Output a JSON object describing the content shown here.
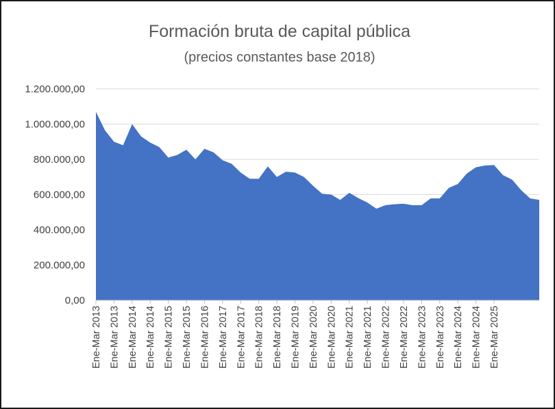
{
  "chart_data": {
    "type": "area",
    "title": "Formación bruta de capital pública",
    "subtitle": "(precios constantes base 2018)",
    "xlabel": "",
    "ylabel": "",
    "ylim": [
      0,
      1200000
    ],
    "grid": true,
    "yticks": [
      {
        "value": 0,
        "label": "0,00"
      },
      {
        "value": 200000,
        "label": "200.000,00"
      },
      {
        "value": 400000,
        "label": "400.000,00"
      },
      {
        "value": 600000,
        "label": "600.000,00"
      },
      {
        "value": 800000,
        "label": "800.000,00"
      },
      {
        "value": 1000000,
        "label": "1.000.000,00"
      },
      {
        "value": 1200000,
        "label": "1.200.000,00"
      }
    ],
    "xticks": [
      {
        "index": 0,
        "label": "Ene-Mar 2013"
      },
      {
        "index": 2,
        "label": "Ene-Mar 2013"
      },
      {
        "index": 4,
        "label": "Ene-Mar 2014"
      },
      {
        "index": 6,
        "label": "Ene-Mar 2014"
      },
      {
        "index": 8,
        "label": "Ene-Mar 2015"
      },
      {
        "index": 10,
        "label": "Ene-Mar 2015"
      },
      {
        "index": 12,
        "label": "Ene-Mar 2016"
      },
      {
        "index": 14,
        "label": "Ene-Mar 2017"
      },
      {
        "index": 16,
        "label": "Ene-Mar 2017"
      },
      {
        "index": 18,
        "label": "Ene-Mar 2018"
      },
      {
        "index": 20,
        "label": "Ene-Mar 2018"
      },
      {
        "index": 22,
        "label": "Ene-Mar 2019"
      },
      {
        "index": 24,
        "label": "Ene-Mar 2020"
      },
      {
        "index": 26,
        "label": "Ene-Mar 2020"
      },
      {
        "index": 28,
        "label": "Ene-Mar 2021"
      },
      {
        "index": 30,
        "label": "Ene-Mar 2021"
      },
      {
        "index": 32,
        "label": "Ene-Mar 2022"
      },
      {
        "index": 34,
        "label": "Ene-Mar 2022"
      },
      {
        "index": 36,
        "label": "Ene-Mar 2023"
      },
      {
        "index": 38,
        "label": "Ene-Mar 2023"
      },
      {
        "index": 40,
        "label": "Ene-Mar 2024"
      },
      {
        "index": 42,
        "label": "Ene-Mar 2024"
      },
      {
        "index": 44,
        "label": "Ene-Mar 2025"
      }
    ],
    "series": [
      {
        "name": "Formación bruta de capital pública",
        "color": "#4472c4",
        "values": [
          1070000,
          965000,
          900000,
          880000,
          1000000,
          930000,
          895000,
          870000,
          810000,
          825000,
          855000,
          800000,
          860000,
          840000,
          795000,
          775000,
          725000,
          690000,
          690000,
          760000,
          700000,
          730000,
          725000,
          700000,
          650000,
          605000,
          600000,
          570000,
          610000,
          580000,
          555000,
          520000,
          540000,
          545000,
          548000,
          540000,
          540000,
          578000,
          578000,
          638000,
          660000,
          720000,
          755000,
          765000,
          768000,
          710000,
          685000,
          625000,
          578000,
          570000
        ]
      }
    ]
  }
}
